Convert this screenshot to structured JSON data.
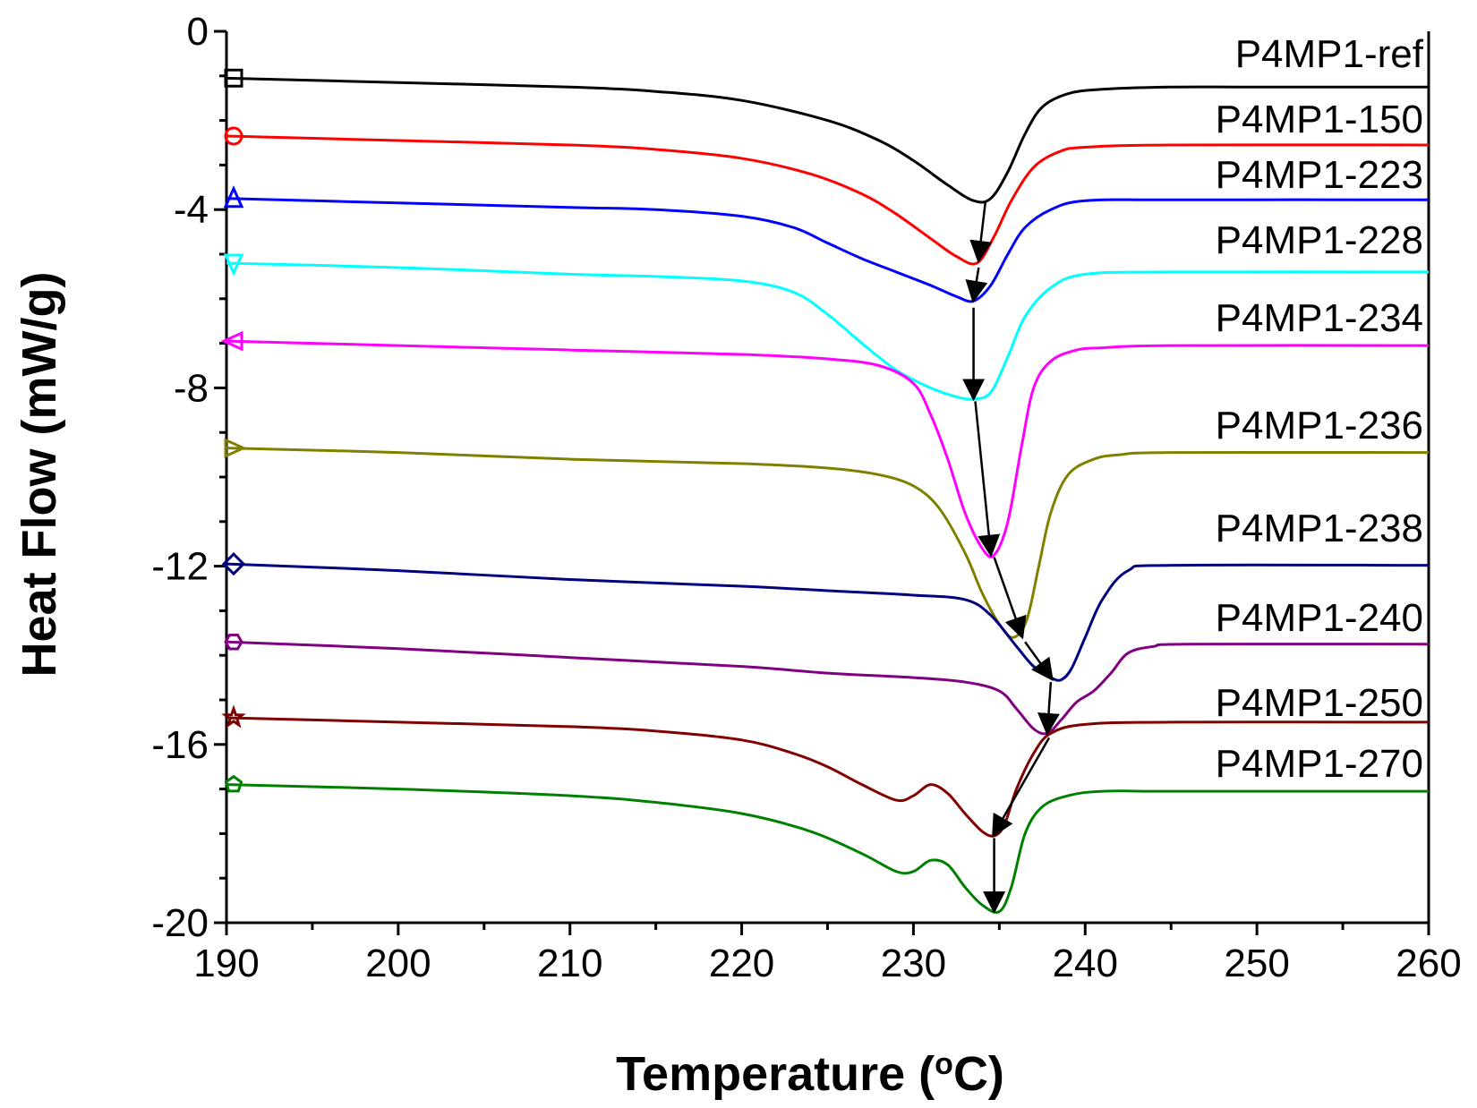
{
  "chart_data": {
    "type": "line",
    "title": "",
    "xlabel": "Temperature (",
    "xlabel_degree": "o",
    "xlabel_unit": "C)",
    "ylabel": "Heat Flow (mW/g)",
    "xlim": [
      190,
      260
    ],
    "ylim": [
      -20,
      0
    ],
    "x_ticks": [
      190,
      200,
      210,
      220,
      230,
      240,
      250,
      260
    ],
    "y_ticks": [
      0,
      -4,
      -8,
      -12,
      -16,
      -20
    ],
    "grid": false,
    "legend": "inline labels right side",
    "series": [
      {
        "name": "P4MP1-ref",
        "color": "#000000",
        "marker": "square",
        "x": [
          190,
          200,
          210,
          215,
          220,
          225,
          228,
          230,
          232,
          233.5,
          234.5,
          235.5,
          236.5,
          237.5,
          239,
          241,
          245,
          250,
          260
        ],
        "y": [
          -1.05,
          -1.15,
          -1.25,
          -1.35,
          -1.55,
          -2.0,
          -2.45,
          -2.9,
          -3.45,
          -3.8,
          -3.75,
          -3.15,
          -2.3,
          -1.7,
          -1.4,
          -1.3,
          -1.25,
          -1.25,
          -1.25
        ]
      },
      {
        "name": "P4MP1-150",
        "color": "#ff0000",
        "marker": "circle",
        "x": [
          190,
          200,
          210,
          215,
          220,
          224,
          227,
          229,
          231,
          232.5,
          233.7,
          234.7,
          235.7,
          237,
          238.5,
          240,
          245,
          260
        ],
        "y": [
          -2.35,
          -2.45,
          -2.55,
          -2.65,
          -2.85,
          -3.2,
          -3.65,
          -4.1,
          -4.65,
          -5.05,
          -5.2,
          -4.6,
          -3.8,
          -3.05,
          -2.7,
          -2.6,
          -2.55,
          -2.55
        ]
      },
      {
        "name": "P4MP1-223",
        "color": "#0000ff",
        "marker": "triangle-up",
        "x": [
          190,
          200,
          210,
          215,
          220,
          223,
          225,
          227,
          229,
          231,
          232.5,
          233.5,
          234.5,
          235.5,
          236.5,
          238,
          240,
          245,
          260
        ],
        "y": [
          -3.75,
          -3.85,
          -3.95,
          -4.0,
          -4.15,
          -4.4,
          -4.75,
          -5.1,
          -5.4,
          -5.7,
          -5.95,
          -6.05,
          -5.7,
          -5.0,
          -4.4,
          -4.0,
          -3.8,
          -3.78,
          -3.78
        ]
      },
      {
        "name": "P4MP1-228",
        "color": "#00ffff",
        "marker": "triangle-down",
        "x": [
          190,
          200,
          210,
          215,
          220,
          223,
          225,
          227,
          229,
          231,
          232.5,
          233.5,
          234.5,
          235.5,
          236.5,
          238,
          240,
          245,
          260
        ],
        "y": [
          -5.2,
          -5.3,
          -5.45,
          -5.5,
          -5.6,
          -5.85,
          -6.35,
          -7.0,
          -7.6,
          -8.0,
          -8.2,
          -8.25,
          -8.1,
          -7.3,
          -6.4,
          -5.75,
          -5.45,
          -5.4,
          -5.4
        ]
      },
      {
        "name": "P4MP1-234",
        "color": "#ff00ff",
        "marker": "triangle-left",
        "x": [
          190,
          200,
          210,
          220,
          225,
          228,
          230,
          231,
          232,
          233,
          234,
          234.7,
          235.5,
          236.3,
          237,
          238,
          239.5,
          241,
          245,
          260
        ],
        "y": [
          -6.95,
          -7.05,
          -7.15,
          -7.25,
          -7.35,
          -7.5,
          -7.9,
          -8.6,
          -9.6,
          -10.8,
          -11.6,
          -11.75,
          -11.0,
          -9.3,
          -8.0,
          -7.4,
          -7.15,
          -7.1,
          -7.05,
          -7.05
        ]
      },
      {
        "name": "P4MP1-236",
        "color": "#808000",
        "marker": "triangle-right",
        "x": [
          190,
          200,
          210,
          220,
          225,
          228,
          230,
          231.5,
          233,
          234,
          235,
          235.8,
          236.6,
          237.3,
          238,
          239,
          240.5,
          242,
          245,
          260
        ],
        "y": [
          -9.35,
          -9.45,
          -9.6,
          -9.7,
          -9.8,
          -9.95,
          -10.2,
          -10.7,
          -11.7,
          -12.6,
          -13.3,
          -13.6,
          -13.2,
          -12.0,
          -10.8,
          -9.95,
          -9.6,
          -9.5,
          -9.45,
          -9.45
        ]
      },
      {
        "name": "P4MP1-238",
        "color": "#000080",
        "marker": "diamond",
        "x": [
          190,
          200,
          210,
          220,
          225,
          230,
          233,
          234.5,
          236,
          237,
          238,
          238.6,
          239.2,
          240,
          241,
          242.5,
          245,
          260
        ],
        "y": [
          -11.95,
          -12.1,
          -12.3,
          -12.45,
          -12.55,
          -12.65,
          -12.75,
          -13.1,
          -13.8,
          -14.25,
          -14.5,
          -14.55,
          -14.3,
          -13.6,
          -12.75,
          -12.1,
          -11.98,
          -11.98
        ]
      },
      {
        "name": "P4MP1-240",
        "color": "#800080",
        "marker": "hexagon",
        "x": [
          190,
          200,
          210,
          220,
          225,
          230,
          233,
          235,
          236,
          237,
          237.8,
          238.6,
          239.5,
          240.5,
          241.5,
          242.5,
          244,
          246,
          260
        ],
        "y": [
          -13.7,
          -13.85,
          -14.05,
          -14.25,
          -14.4,
          -14.5,
          -14.6,
          -14.8,
          -15.2,
          -15.65,
          -15.75,
          -15.45,
          -15.05,
          -14.8,
          -14.4,
          -13.95,
          -13.8,
          -13.75,
          -13.75
        ]
      },
      {
        "name": "P4MP1-250",
        "color": "#800000",
        "marker": "star",
        "x": [
          190,
          200,
          210,
          215,
          220,
          223,
          225,
          227,
          229,
          230,
          231,
          232,
          233,
          234,
          234.7,
          235.3,
          236,
          237,
          238,
          240,
          245,
          260
        ],
        "y": [
          -15.4,
          -15.5,
          -15.6,
          -15.7,
          -15.9,
          -16.2,
          -16.5,
          -16.9,
          -17.25,
          -17.15,
          -16.9,
          -17.1,
          -17.55,
          -17.95,
          -18.05,
          -17.8,
          -17.0,
          -16.2,
          -15.75,
          -15.55,
          -15.5,
          -15.5
        ]
      },
      {
        "name": "P4MP1-270",
        "color": "#008000",
        "marker": "pentagon",
        "x": [
          190,
          200,
          210,
          215,
          220,
          224,
          227,
          229,
          230,
          231,
          232,
          233,
          234,
          235,
          235.7,
          236.5,
          237.5,
          239,
          241,
          245,
          260
        ],
        "y": [
          -16.9,
          -17.0,
          -17.15,
          -17.3,
          -17.55,
          -17.95,
          -18.45,
          -18.85,
          -18.85,
          -18.6,
          -18.7,
          -19.2,
          -19.6,
          -19.75,
          -19.2,
          -18.0,
          -17.4,
          -17.15,
          -17.05,
          -17.05,
          -17.05
        ]
      }
    ],
    "arrows": [
      {
        "from": [
          234.2,
          -3.8
        ],
        "to": [
          233.8,
          -5.1
        ]
      },
      {
        "from": [
          233.8,
          -5.3
        ],
        "to": [
          233.5,
          -6.0
        ]
      },
      {
        "from": [
          233.5,
          -6.2
        ],
        "to": [
          233.5,
          -8.2
        ]
      },
      {
        "from": [
          233.6,
          -8.3
        ],
        "to": [
          234.5,
          -11.7
        ]
      },
      {
        "from": [
          234.7,
          -11.8
        ],
        "to": [
          236.3,
          -13.55
        ]
      },
      {
        "from": [
          236.5,
          -13.7
        ],
        "to": [
          238.0,
          -14.5
        ]
      },
      {
        "from": [
          238.0,
          -14.6
        ],
        "to": [
          237.8,
          -15.7
        ]
      },
      {
        "from": [
          237.9,
          -15.85
        ],
        "to": [
          234.7,
          -18.0
        ]
      },
      {
        "from": [
          234.7,
          -18.1
        ],
        "to": [
          234.7,
          -19.7
        ]
      }
    ]
  }
}
